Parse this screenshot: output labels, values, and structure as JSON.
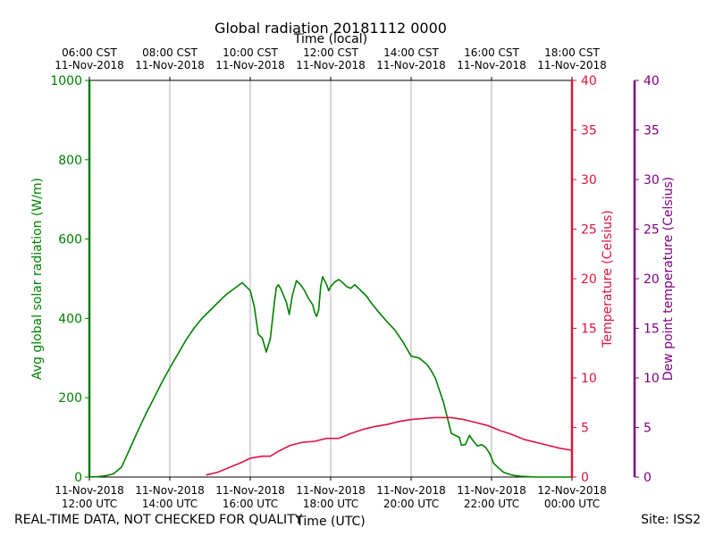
{
  "chart_data": {
    "type": "line",
    "title": "Global radiation 20181112 0000",
    "top_axis_label": "Time (local)",
    "top_ticks": [
      {
        "hour": 12,
        "line1": "06:00 CST",
        "line2": "11-Nov-2018"
      },
      {
        "hour": 14,
        "line1": "08:00 CST",
        "line2": "11-Nov-2018"
      },
      {
        "hour": 16,
        "line1": "10:00 CST",
        "line2": "11-Nov-2018"
      },
      {
        "hour": 18,
        "line1": "12:00 CST",
        "line2": "11-Nov-2018"
      },
      {
        "hour": 20,
        "line1": "14:00 CST",
        "line2": "11-Nov-2018"
      },
      {
        "hour": 22,
        "line1": "16:00 CST",
        "line2": "11-Nov-2018"
      },
      {
        "hour": 24,
        "line1": "18:00 CST",
        "line2": "11-Nov-2018"
      }
    ],
    "bottom_ticks": [
      {
        "hour": 12,
        "line1": "11-Nov-2018",
        "line2": "12:00 UTC"
      },
      {
        "hour": 14,
        "line1": "11-Nov-2018",
        "line2": "14:00 UTC"
      },
      {
        "hour": 16,
        "line1": "11-Nov-2018",
        "line2": "16:00 UTC"
      },
      {
        "hour": 18,
        "line1": "11-Nov-2018",
        "line2": "18:00 UTC"
      },
      {
        "hour": 20,
        "line1": "11-Nov-2018",
        "line2": "20:00 UTC"
      },
      {
        "hour": 22,
        "line1": "11-Nov-2018",
        "line2": "22:00 UTC"
      },
      {
        "hour": 24,
        "line1": "12-Nov-2018",
        "line2": "00:00 UTC"
      }
    ],
    "xlabel": "Time (UTC)",
    "xlim": [
      12,
      24
    ],
    "grid_hours": [
      14,
      16,
      18,
      20,
      22
    ],
    "left_axis": {
      "label": "Avg global solar radiation (W/m)",
      "ylim": [
        0,
        1000
      ],
      "ticks": [
        0,
        200,
        400,
        600,
        800,
        1000
      ],
      "color": "#008000"
    },
    "temp_axis": {
      "label": "Temperature (Celsius)",
      "ylim": [
        0,
        40
      ],
      "ticks": [
        0,
        5,
        10,
        15,
        20,
        25,
        30,
        35,
        40
      ],
      "color": "#dc143c"
    },
    "dew_axis": {
      "label": "Dew point temperature (Celsius)",
      "ylim": [
        0,
        40
      ],
      "ticks": [
        0,
        5,
        10,
        15,
        20,
        25,
        30,
        35,
        40
      ],
      "color": "#800080"
    },
    "series": [
      {
        "name": "Avg global solar radiation",
        "axis": "left",
        "color": "#008000",
        "x": [
          12.0,
          12.2,
          12.4,
          12.6,
          12.8,
          13.0,
          13.2,
          13.4,
          13.6,
          13.8,
          14.0,
          14.2,
          14.4,
          14.6,
          14.8,
          15.0,
          15.2,
          15.4,
          15.6,
          15.8,
          16.0,
          16.1,
          16.2,
          16.3,
          16.4,
          16.5,
          16.6,
          16.65,
          16.7,
          16.75,
          16.8,
          16.9,
          16.97,
          17.05,
          17.15,
          17.25,
          17.35,
          17.45,
          17.55,
          17.6,
          17.65,
          17.7,
          17.75,
          17.8,
          17.9,
          17.95,
          18.0,
          18.1,
          18.2,
          18.3,
          18.4,
          18.5,
          18.6,
          18.7,
          18.8,
          18.9,
          19.0,
          19.2,
          19.4,
          19.6,
          19.8,
          20.0,
          20.2,
          20.4,
          20.5,
          20.6,
          20.8,
          21.0,
          21.1,
          21.2,
          21.25,
          21.35,
          21.45,
          21.55,
          21.65,
          21.75,
          21.85,
          21.95,
          22.05,
          22.15,
          22.3,
          22.5,
          22.7,
          22.9,
          23.1,
          23.3,
          23.6,
          24.0
        ],
        "values": [
          0,
          1,
          3,
          8,
          25,
          70,
          115,
          158,
          198,
          238,
          275,
          310,
          345,
          375,
          400,
          420,
          440,
          460,
          475,
          490,
          470,
          430,
          360,
          350,
          315,
          350,
          440,
          478,
          485,
          476,
          465,
          440,
          410,
          460,
          495,
          485,
          470,
          450,
          435,
          415,
          405,
          420,
          480,
          505,
          485,
          470,
          480,
          492,
          498,
          490,
          480,
          476,
          485,
          475,
          465,
          455,
          440,
          415,
          392,
          370,
          340,
          305,
          300,
          283,
          268,
          250,
          190,
          110,
          105,
          100,
          80,
          82,
          105,
          90,
          78,
          82,
          75,
          60,
          35,
          25,
          12,
          5,
          2,
          1,
          0,
          0,
          0,
          0
        ]
      },
      {
        "name": "Temperature",
        "axis": "temp",
        "color": "#dc143c",
        "x": [
          14.9,
          15.2,
          15.5,
          15.8,
          16.0,
          16.3,
          16.5,
          16.7,
          17.0,
          17.3,
          17.6,
          17.9,
          18.2,
          18.5,
          18.8,
          19.1,
          19.4,
          19.7,
          20.0,
          20.3,
          20.6,
          20.9,
          21.0,
          21.3,
          21.6,
          21.9,
          22.2,
          22.5,
          22.8,
          23.1,
          23.4,
          23.7,
          24.0
        ],
        "values": [
          0.2,
          0.5,
          1.0,
          1.5,
          1.9,
          2.1,
          2.1,
          2.6,
          3.2,
          3.5,
          3.6,
          3.9,
          3.9,
          4.4,
          4.8,
          5.1,
          5.3,
          5.6,
          5.8,
          5.9,
          6.0,
          6.0,
          6.0,
          5.8,
          5.5,
          5.2,
          4.7,
          4.3,
          3.8,
          3.5,
          3.2,
          2.9,
          2.7
        ]
      }
    ]
  },
  "footer": {
    "qc_note": "REAL-TIME DATA, NOT CHECKED FOR QUALITY",
    "site": "Site: ISS2"
  }
}
